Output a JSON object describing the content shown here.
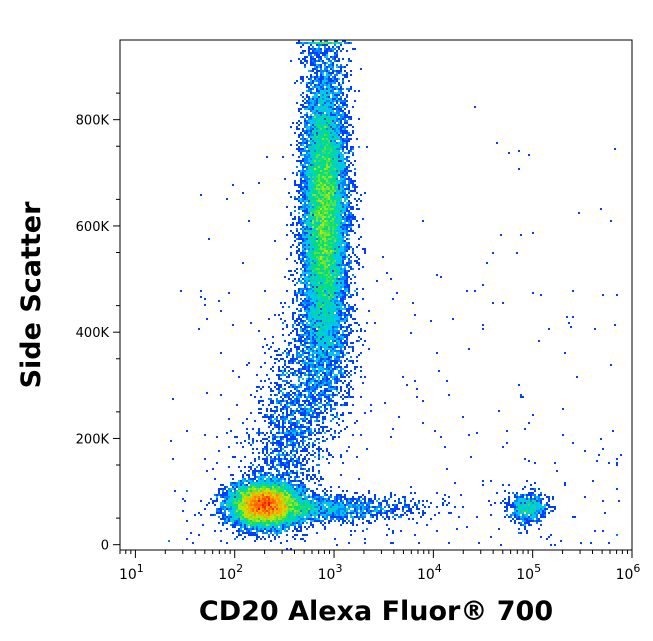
{
  "chart_data": {
    "type": "scatter",
    "style": "density-colored flow cytometry dot plot",
    "title": "",
    "xlabel": "CD20 Alexa Fluor® 700",
    "ylabel": "Side Scatter",
    "x_scale": "log",
    "y_scale": "linear",
    "xlim": [
      7,
      1000000
    ],
    "ylim": [
      -10000,
      950000
    ],
    "grid": false,
    "legend": "none",
    "x_ticks": [
      {
        "value": 10,
        "base": "10",
        "exp": "1"
      },
      {
        "value": 100,
        "base": "10",
        "exp": "2"
      },
      {
        "value": 1000,
        "base": "10",
        "exp": "3"
      },
      {
        "value": 10000,
        "base": "10",
        "exp": "4"
      },
      {
        "value": 100000,
        "base": "10",
        "exp": "5"
      },
      {
        "value": 1000000,
        "base": "10",
        "exp": "6"
      }
    ],
    "y_ticks": [
      {
        "value": 0,
        "label": "0"
      },
      {
        "value": 200000,
        "label": "200K"
      },
      {
        "value": 400000,
        "label": "400K"
      },
      {
        "value": 600000,
        "label": "600K"
      },
      {
        "value": 800000,
        "label": "800K"
      }
    ],
    "density_colors": [
      "#0000ff",
      "#00c8ff",
      "#00e070",
      "#c8e600",
      "#ff9600",
      "#ff0000"
    ],
    "populations": [
      {
        "center_x": 200,
        "center_y": 75000,
        "relative_size": "large",
        "peak_density": "high"
      },
      {
        "center_x": 800,
        "center_y": 620000,
        "relative_size": "large",
        "peak_density": "high"
      },
      {
        "center_x": 90000,
        "center_y": 70000,
        "relative_size": "small",
        "peak_density": "medium"
      }
    ]
  }
}
